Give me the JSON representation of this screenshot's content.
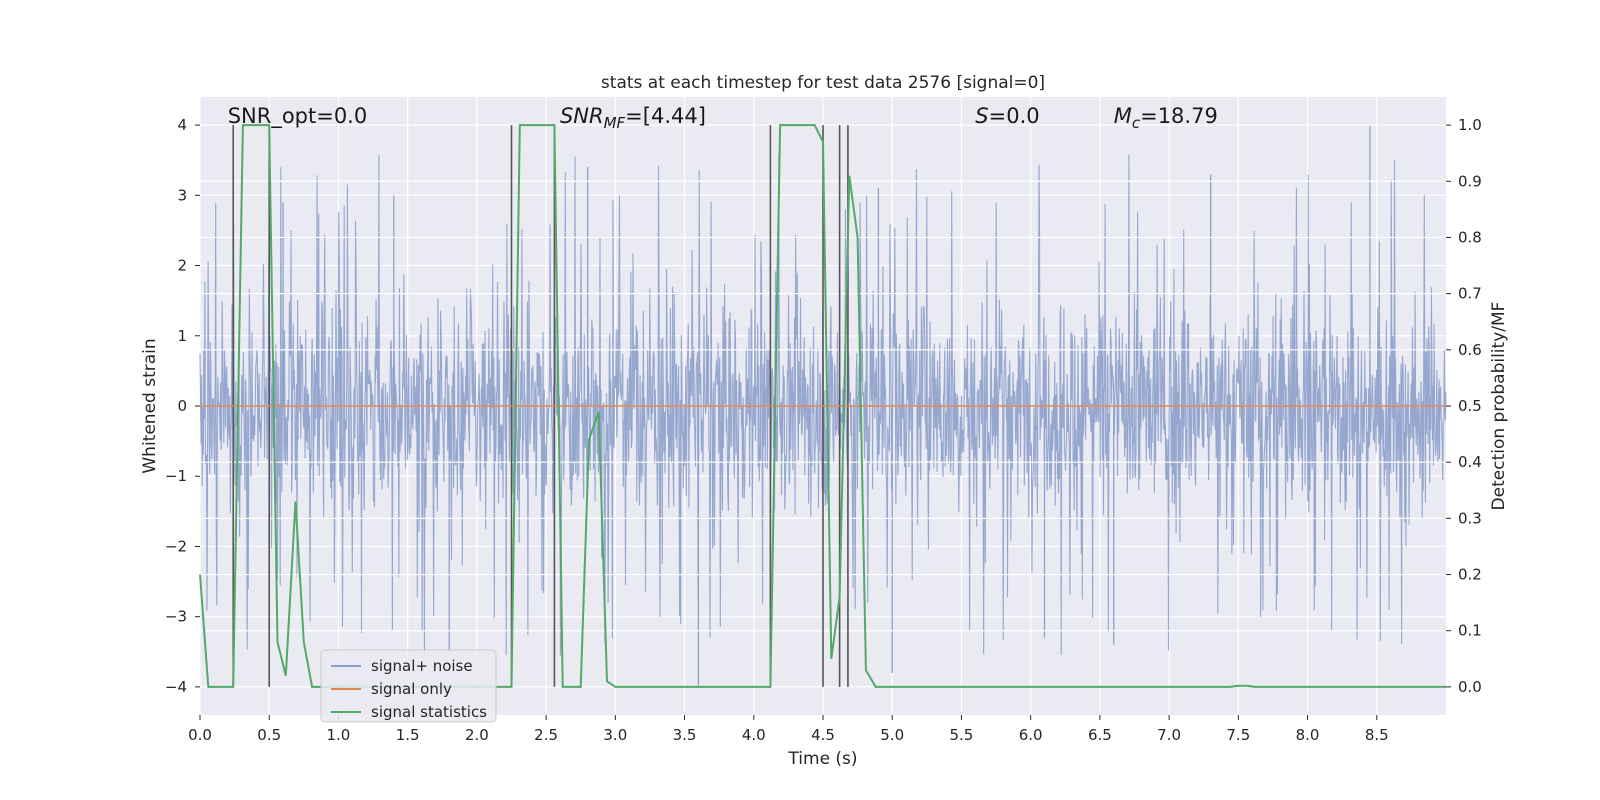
{
  "chart_data": {
    "type": "line",
    "title": "stats at each timestep for test data 2576 [signal=0]",
    "xlabel": "Time (s)",
    "ylabel_left": "Whitened strain",
    "ylabel_right": "Detection probability/MF",
    "xlim": [
      0.0,
      9.0
    ],
    "ylim_left": [
      -4.4,
      4.4
    ],
    "ylim_right": [
      -0.05,
      1.05
    ],
    "xticks": [
      0.0,
      0.5,
      1.0,
      1.5,
      2.0,
      2.5,
      3.0,
      3.5,
      4.0,
      4.5,
      5.0,
      5.5,
      6.0,
      6.5,
      7.0,
      7.5,
      8.0,
      8.5
    ],
    "xtick_labels": [
      "0.0",
      "0.5",
      "1.0",
      "1.5",
      "2.0",
      "2.5",
      "3.0",
      "3.5",
      "4.0",
      "4.5",
      "5.0",
      "5.5",
      "6.0",
      "6.5",
      "7.0",
      "7.5",
      "8.0",
      "8.5"
    ],
    "yticks_left": [
      -4,
      -3,
      -2,
      -1,
      0,
      1,
      2,
      3,
      4
    ],
    "ytick_labels_left": [
      "−4",
      "−3",
      "−2",
      "−1",
      "0",
      "1",
      "2",
      "3",
      "4"
    ],
    "yticks_right": [
      0.0,
      0.1,
      0.2,
      0.3,
      0.4,
      0.5,
      0.6,
      0.7,
      0.8,
      0.9,
      1.0
    ],
    "ytick_labels_right": [
      "0.0",
      "0.1",
      "0.2",
      "0.3",
      "0.4",
      "0.5",
      "0.6",
      "0.7",
      "0.8",
      "0.9",
      "1.0"
    ],
    "annotations": [
      {
        "name": "snr-opt",
        "text": "SNR_opt=0.0",
        "x": 0.2,
        "y_right": 1.0
      },
      {
        "name": "snr-mf",
        "text": "SNR_MF=[4.44]",
        "x": 2.6,
        "y_right": 1.0
      },
      {
        "name": "s-stat",
        "text": "S=0.0",
        "x": 5.6,
        "y_right": 1.0
      },
      {
        "name": "chirp-mass",
        "text": "M_c=18.79",
        "x": 6.6,
        "y_right": 1.0
      }
    ],
    "legend": {
      "position": "lower-left",
      "entries": [
        {
          "label": "signal+ noise",
          "color": "#8c9fcb"
        },
        {
          "label": "signal only",
          "color": "#dd8452"
        },
        {
          "label": "signal statistics",
          "color": "#55a868"
        }
      ]
    },
    "vertical_lines_x": [
      0.24,
      0.5,
      2.25,
      2.56,
      4.12,
      4.5,
      4.62,
      4.68
    ],
    "series": [
      {
        "name": "signal+ noise",
        "axis": "left",
        "color": "#8c9fcb",
        "description": "dense whitened noise band spanning about 0.0 to 9.0 s",
        "core_band": [
          -1.6,
          1.6
        ],
        "typical_peak_range": [
          1.9,
          3.6
        ],
        "highest_peaks": [
          {
            "x": 0.6,
            "y": 2.9
          },
          {
            "x": 1.4,
            "y": 3.0
          },
          {
            "x": 2.8,
            "y": 3.4
          },
          {
            "x": 4.9,
            "y": 3.1
          },
          {
            "x": 7.3,
            "y": 3.3
          },
          {
            "x": 8.45,
            "y": 4.0
          }
        ],
        "lowest_troughs": [
          {
            "x": 1.8,
            "y": -3.5
          },
          {
            "x": 3.6,
            "y": -4.0
          },
          {
            "x": 5.0,
            "y": -3.8
          },
          {
            "x": 6.1,
            "y": -3.3
          },
          {
            "x": 6.6,
            "y": -3.4
          }
        ]
      },
      {
        "name": "signal only",
        "axis": "left",
        "color": "#dd8452",
        "x": [
          0.0,
          9.0
        ],
        "y": [
          0.0,
          0.0
        ]
      },
      {
        "name": "signal statistics",
        "axis": "right",
        "color": "#55a868",
        "x": [
          0.0,
          0.06,
          0.24,
          0.31,
          0.38,
          0.5,
          0.56,
          0.62,
          0.69,
          0.75,
          0.81,
          0.88,
          2.25,
          2.31,
          2.38,
          2.56,
          2.62,
          2.75,
          2.81,
          2.88,
          2.94,
          3.0,
          4.12,
          4.19,
          4.25,
          4.44,
          4.5,
          4.56,
          4.62,
          4.69,
          4.75,
          4.81,
          4.88,
          7.44,
          7.5,
          7.56,
          7.62,
          9.0
        ],
        "y": [
          0.2,
          0.0,
          0.0,
          1.0,
          1.0,
          1.0,
          0.08,
          0.02,
          0.33,
          0.08,
          0.0,
          0.0,
          0.0,
          1.0,
          1.0,
          1.0,
          0.0,
          0.0,
          0.44,
          0.49,
          0.01,
          0.0,
          0.0,
          1.0,
          1.0,
          1.0,
          0.97,
          0.05,
          0.16,
          0.91,
          0.8,
          0.03,
          0.0,
          0.0,
          0.002,
          0.002,
          0.0,
          0.0
        ]
      }
    ]
  }
}
